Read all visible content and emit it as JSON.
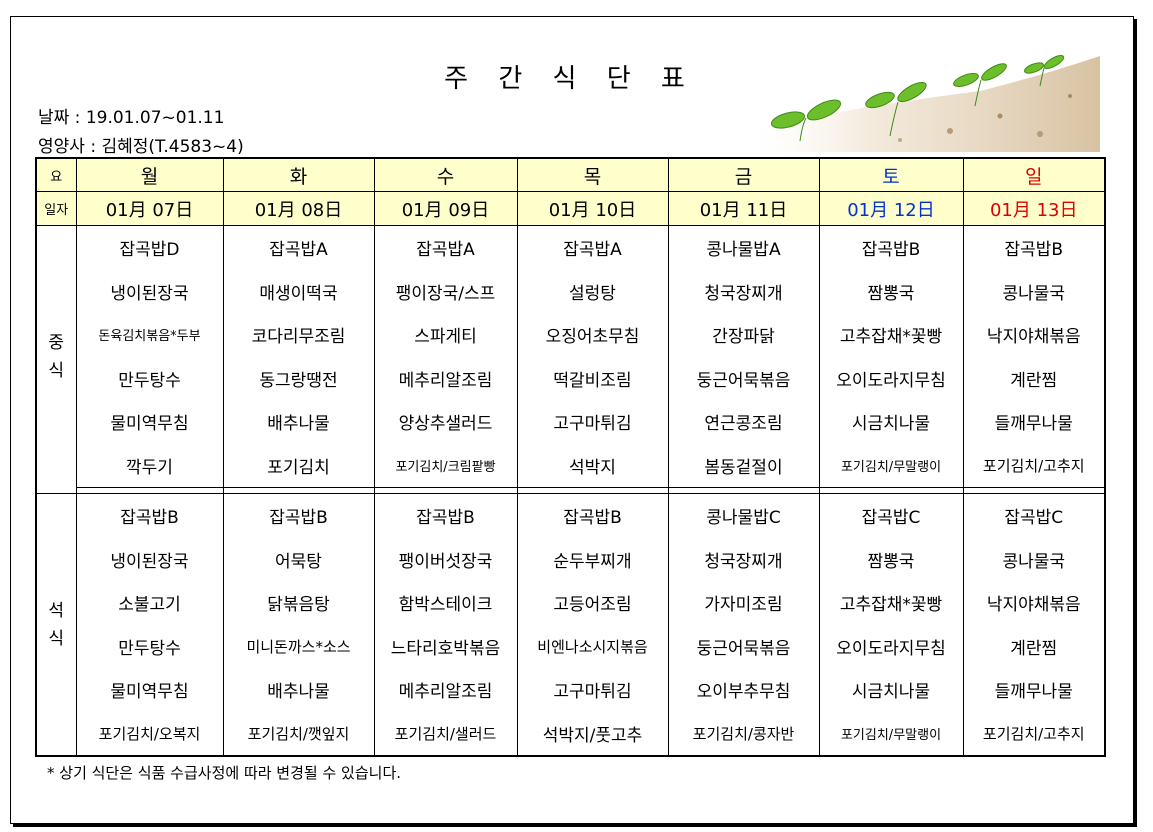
{
  "title": "주 간 식 단 표",
  "date_line": "날짜 : 19.01.07~01.11",
  "dietitian_line": "영양사 : 김혜정(T.4583~4)",
  "header": {
    "day_label": "요",
    "date_label": "일자",
    "days": [
      "월",
      "화",
      "수",
      "목",
      "금",
      "토",
      "일"
    ],
    "dates": [
      "01月 07日",
      "01月 08日",
      "01月 09日",
      "01月 10日",
      "01月 11日",
      "01月 12日",
      "01月 13日"
    ]
  },
  "colors": {
    "saturday": "#0033cc",
    "sunday": "#dd0000",
    "header_bg": "#ffffcc"
  },
  "lunch": {
    "label": "중\n식",
    "rows": [
      [
        "잡곡밥D",
        "잡곡밥A",
        "잡곡밥A",
        "잡곡밥A",
        "콩나물밥A",
        "잡곡밥B",
        "잡곡밥B"
      ],
      [
        "냉이된장국",
        "매생이떡국",
        "팽이장국/스프",
        "설렁탕",
        "청국장찌개",
        "짬뽕국",
        "콩나물국"
      ],
      [
        "돈육김치볶음*두부",
        "코다리무조림",
        "스파게티",
        "오징어초무침",
        "간장파닭",
        "고추잡채*꽃빵",
        "낙지야채볶음"
      ],
      [
        "만두탕수",
        "동그랑땡전",
        "메추리알조림",
        "떡갈비조림",
        "둥근어묵볶음",
        "오이도라지무침",
        "계란찜"
      ],
      [
        "물미역무침",
        "배추나물",
        "양상추샐러드",
        "고구마튀김",
        "연근콩조림",
        "시금치나물",
        "들깨무나물"
      ],
      [
        "깍두기",
        "포기김치",
        "포기김치/크림팥빵",
        "석박지",
        "봄동겉절이",
        "포기김치/무말랭이",
        "포기김치/고추지"
      ]
    ]
  },
  "dinner": {
    "label": "석\n식",
    "rows": [
      [
        "잡곡밥B",
        "잡곡밥B",
        "잡곡밥B",
        "잡곡밥B",
        "콩나물밥C",
        "잡곡밥C",
        "잡곡밥C"
      ],
      [
        "냉이된장국",
        "어묵탕",
        "팽이버섯장국",
        "순두부찌개",
        "청국장찌개",
        "짬뽕국",
        "콩나물국"
      ],
      [
        "소불고기",
        "닭볶음탕",
        "함박스테이크",
        "고등어조림",
        "가자미조림",
        "고추잡채*꽃빵",
        "낙지야채볶음"
      ],
      [
        "만두탕수",
        "미니돈까스*소스",
        "느타리호박볶음",
        "비엔나소시지볶음",
        "둥근어묵볶음",
        "오이도라지무침",
        "계란찜"
      ],
      [
        "물미역무침",
        "배추나물",
        "메추리알조림",
        "고구마튀김",
        "오이부추무침",
        "시금치나물",
        "들깨무나물"
      ],
      [
        "포기김치/오복지",
        "포기김치/깻잎지",
        "포기김치/샐러드",
        "석박지/풋고추",
        "포기김치/콩자반",
        "포기김치/무말랭이",
        "포기김치/고추지"
      ]
    ]
  },
  "footnote": "* 상기 식단은 식품 수급사정에 따라 변경될 수 있습니다."
}
